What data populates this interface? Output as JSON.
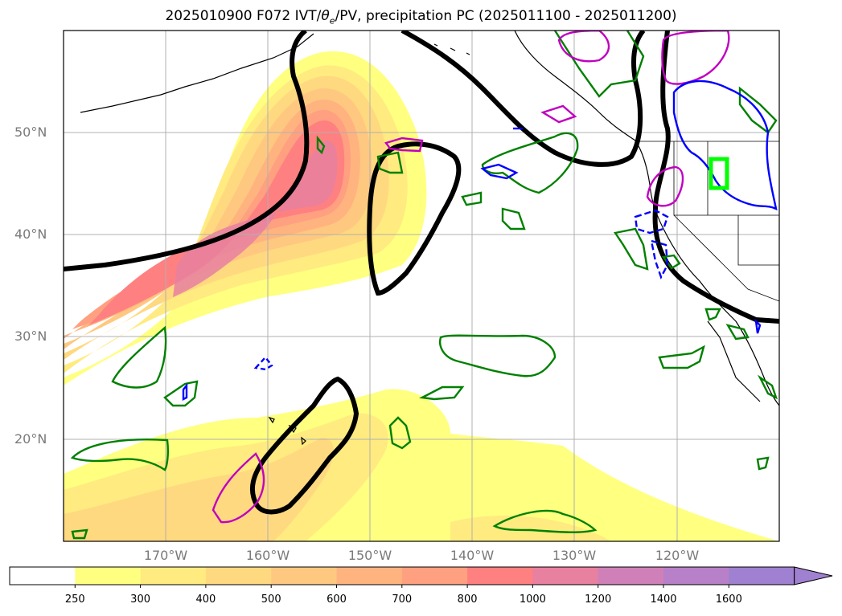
{
  "title": {
    "base": "2025010900 F072 IVT/",
    "theta_symbol": "θ",
    "theta_sub": "e",
    "rest": "/PV, precipitation PC (2025011100 - 2025011200)"
  },
  "lat_labels": [
    "50°N",
    "40°N",
    "30°N",
    "20°N"
  ],
  "lon_labels": [
    "170°W",
    "160°W",
    "150°W",
    "140°W",
    "130°W",
    "120°W"
  ],
  "colorbar": {
    "labels": [
      "250",
      "300",
      "400",
      "500",
      "600",
      "700",
      "800",
      "1000",
      "1200",
      "1400",
      "1600"
    ],
    "colors": [
      "#ffffff",
      "#ffff80",
      "#ffeb80",
      "#ffd980",
      "#ffc880",
      "#ffb480",
      "#ffa080",
      "#ff8080",
      "#e880a0",
      "#d080b8",
      "#b880c8",
      "#a080d0"
    ],
    "extend": "max"
  },
  "map": {
    "region": "North Pacific",
    "lon_range": [
      -180,
      -110
    ],
    "lat_range": [
      10,
      60
    ],
    "gridlines": true,
    "layers": [
      "IVT filled contours",
      "PV contour (black)",
      "precipitation PC contours (green, magenta, blue)",
      "coastlines",
      "state boundaries"
    ],
    "highlight_box_color": "#00ff00"
  }
}
